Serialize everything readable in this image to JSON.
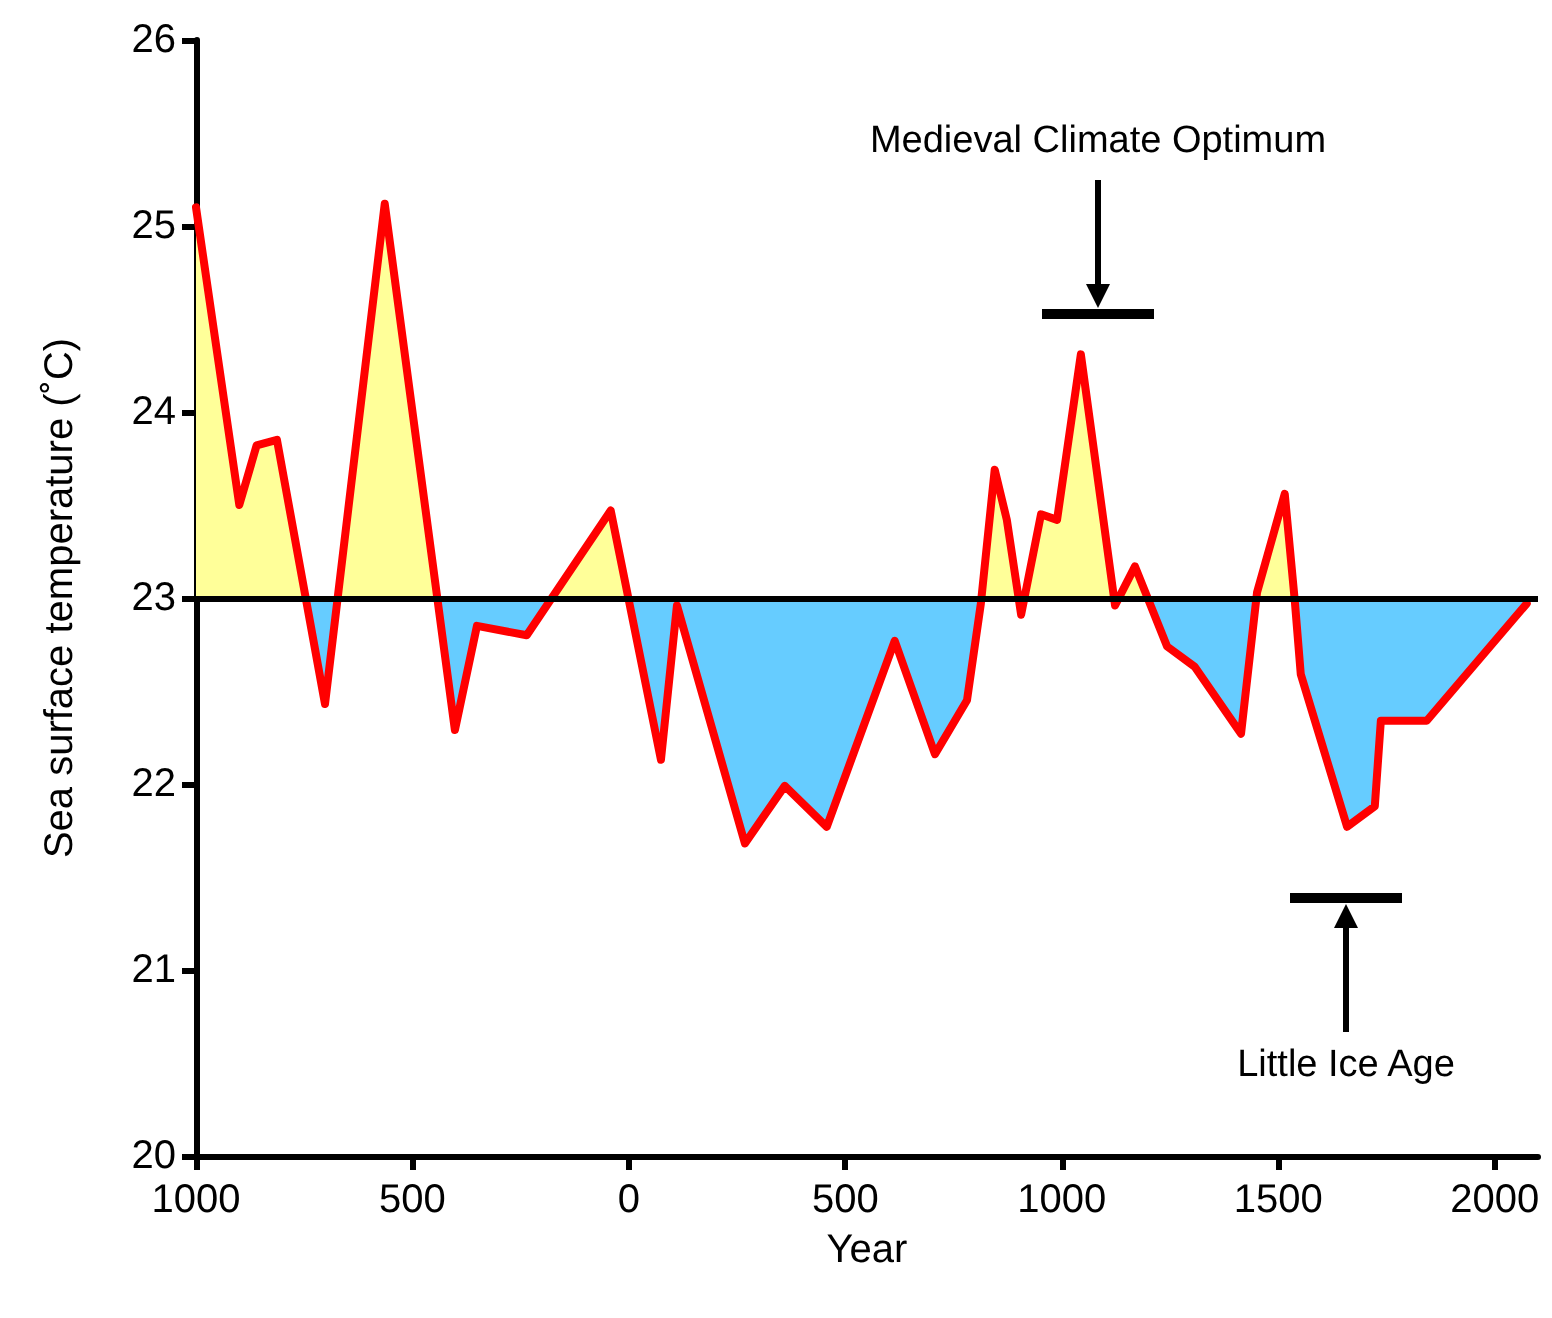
{
  "chart_data": {
    "type": "area",
    "xlabel": "Year",
    "ylabel": "Sea surface temperature (˚C)",
    "xlim": [
      -1000,
      2100
    ],
    "xticks": [
      {
        "value": -1000,
        "label": "1000"
      },
      {
        "value": -500,
        "label": "500"
      },
      0,
      500,
      1000,
      1500,
      2000
    ],
    "ylim": [
      20,
      26
    ],
    "yticks": [
      20,
      21,
      22,
      23,
      24,
      25,
      26
    ],
    "series": [
      {
        "color": "#ff0000",
        "x": [
          -1000,
          -900,
          -860,
          -813,
          -702,
          -564,
          -402,
          -351,
          -236,
          -42,
          74,
          111,
          268,
          360,
          457,
          614,
          707,
          781,
          813,
          845,
          873,
          906,
          952,
          989,
          1044,
          1123,
          1169,
          1243,
          1307,
          1414,
          1451,
          1515,
          1538,
          1552,
          1659,
          1723,
          1737,
          1843,
          2074
        ],
        "values": [
          25.1,
          23.5,
          23.82,
          23.85,
          22.43,
          25.12,
          22.29,
          22.85,
          22.8,
          23.47,
          22.13,
          22.96,
          21.68,
          21.99,
          21.77,
          22.77,
          22.16,
          22.45,
          22.97,
          23.69,
          23.42,
          22.91,
          23.45,
          23.42,
          24.31,
          22.96,
          23.17,
          22.74,
          22.63,
          22.27,
          23.03,
          23.56,
          22.99,
          22.59,
          21.77,
          21.88,
          22.34,
          22.34,
          22.97
        ]
      }
    ],
    "ref_lines": [
      {
        "axis": "y",
        "value": 23,
        "color": "#000000"
      }
    ],
    "annotations": [
      "Medieval Climate Optimum",
      "Little Ice Age"
    ],
    "grid": false,
    "marker": "none",
    "line_style": "solid"
  }
}
